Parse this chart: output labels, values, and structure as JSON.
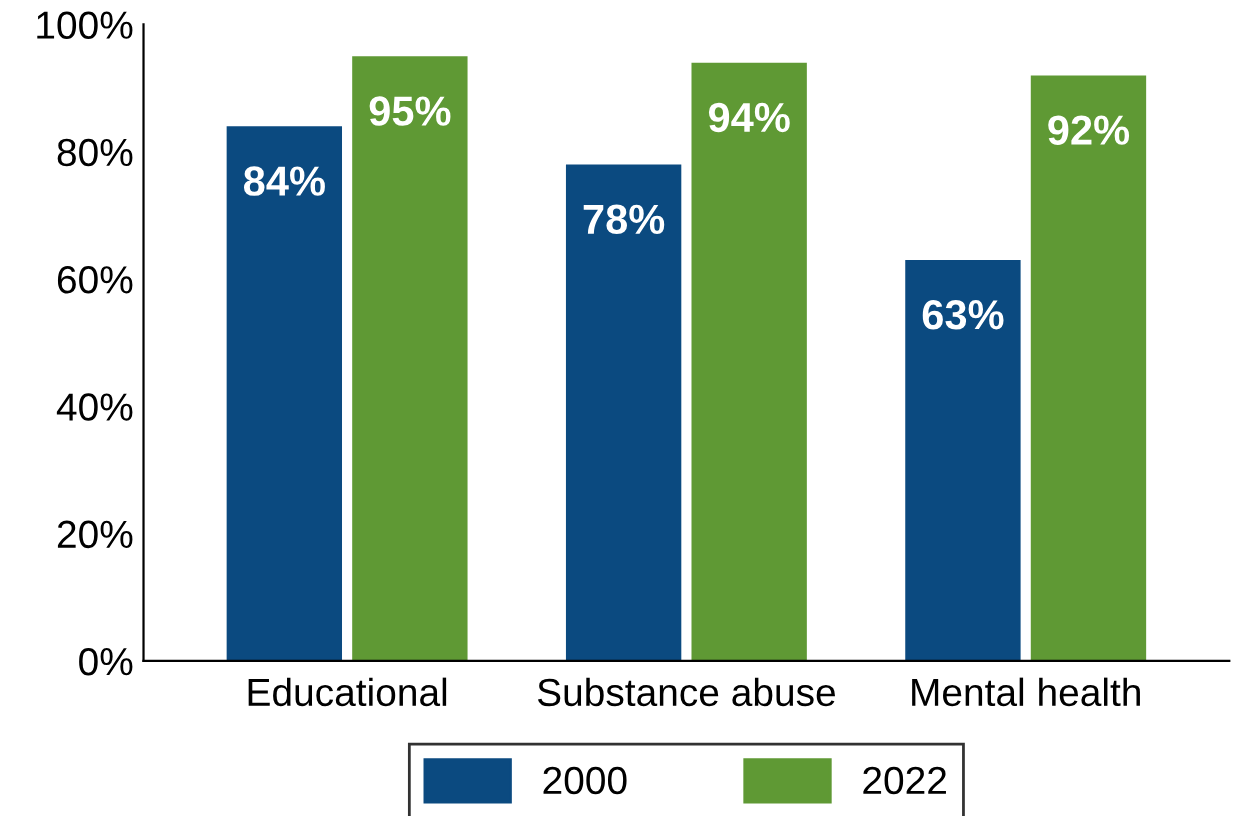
{
  "chart_data": {
    "type": "bar",
    "categories": [
      "Educational",
      "Substance abuse",
      "Mental health"
    ],
    "series": [
      {
        "name": "2000",
        "color": "#0b4a80",
        "values": [
          84,
          78,
          63
        ],
        "value_labels": [
          "84%",
          "78%",
          "63%"
        ]
      },
      {
        "name": "2022",
        "color": "#5f9934",
        "values": [
          95,
          94,
          92
        ],
        "value_labels": [
          "95%",
          "94%",
          "92%"
        ]
      }
    ],
    "ylim": [
      0,
      100
    ],
    "yticks": [
      {
        "value": 0,
        "label": "0%"
      },
      {
        "value": 20,
        "label": "20%"
      },
      {
        "value": 40,
        "label": "40%"
      },
      {
        "value": 60,
        "label": "60%"
      },
      {
        "value": 80,
        "label": "80%"
      },
      {
        "value": 100,
        "label": "100%"
      }
    ],
    "grid": false,
    "legend": "bottom"
  }
}
